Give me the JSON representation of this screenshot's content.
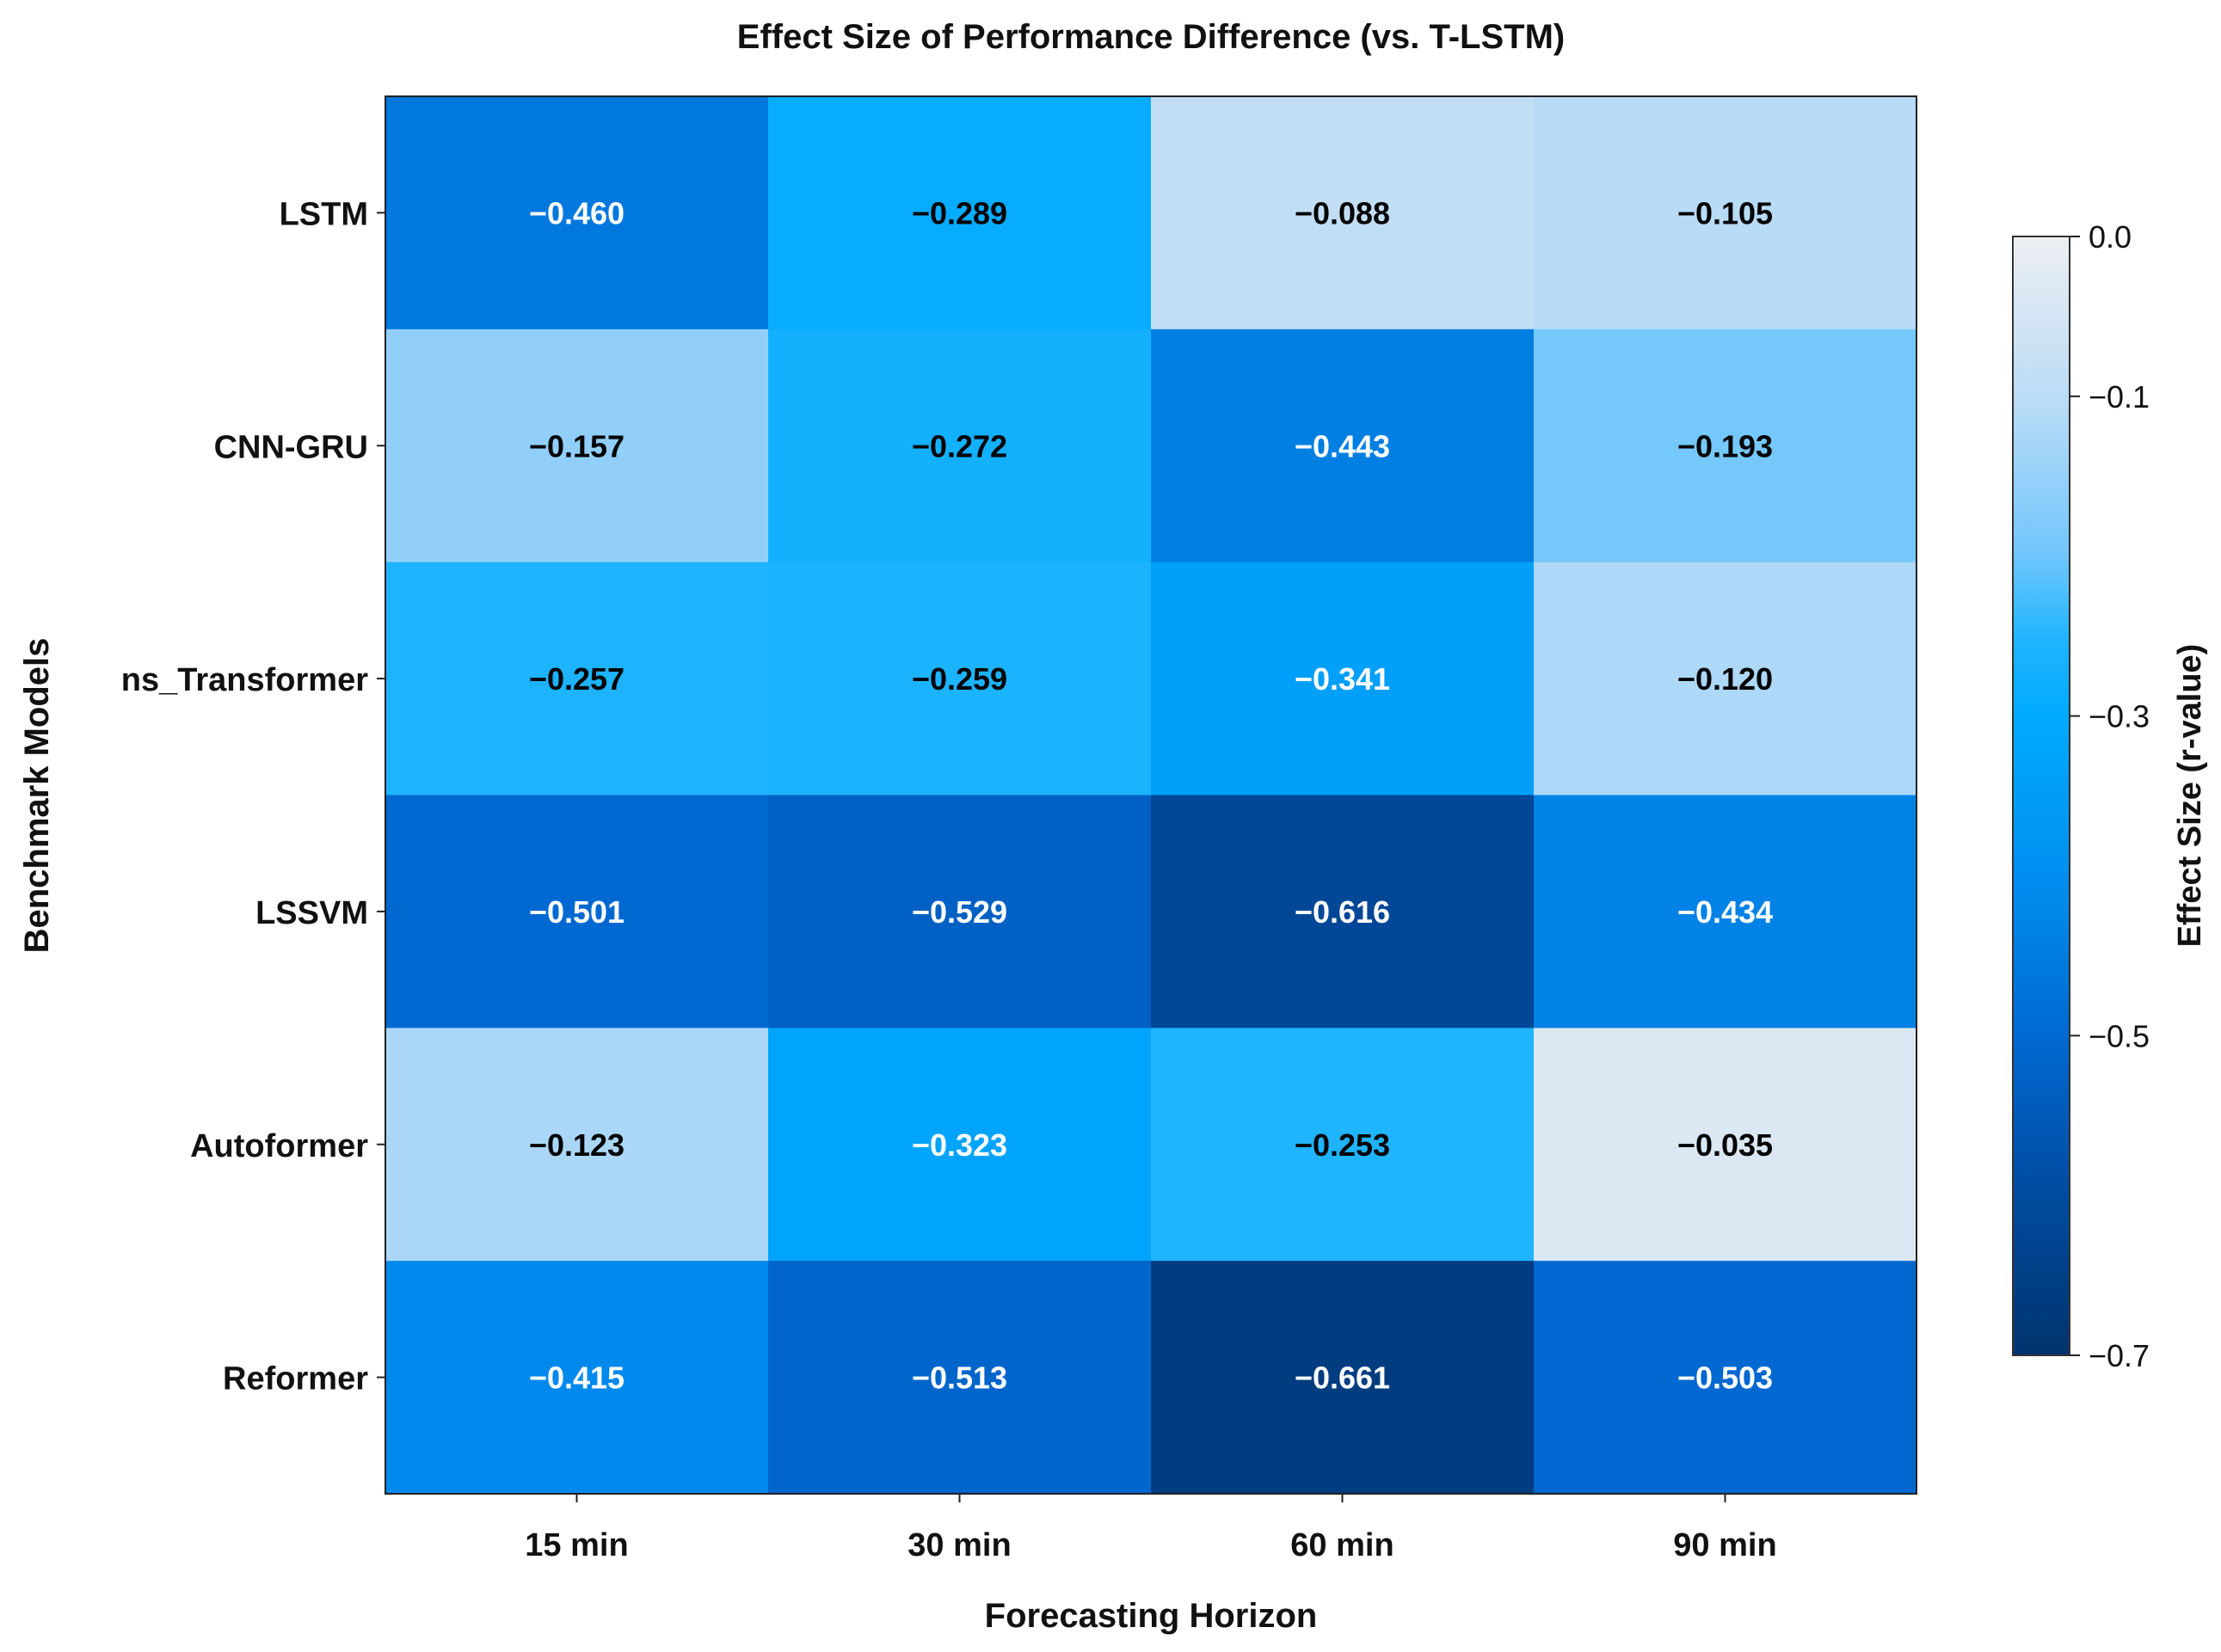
{
  "chart_data": {
    "type": "heatmap",
    "title": "Effect Size of Performance Difference (vs. T-LSTM)",
    "xlabel": "Forecasting Horizon",
    "ylabel": "Benchmark Models",
    "x_categories": [
      "15 min",
      "30 min",
      "60 min",
      "90 min"
    ],
    "y_categories": [
      "LSTM",
      "CNN-GRU",
      "ns_Transformer",
      "LSSVM",
      "Autoformer",
      "Reformer"
    ],
    "values": [
      [
        -0.46,
        -0.289,
        -0.088,
        -0.105
      ],
      [
        -0.157,
        -0.272,
        -0.443,
        -0.193
      ],
      [
        -0.257,
        -0.259,
        -0.341,
        -0.12
      ],
      [
        -0.501,
        -0.529,
        -0.616,
        -0.434
      ],
      [
        -0.123,
        -0.323,
        -0.253,
        -0.035
      ],
      [
        -0.415,
        -0.513,
        -0.661,
        -0.503
      ]
    ],
    "value_labels": [
      [
        "−0.460",
        "−0.289",
        "−0.088",
        "−0.105"
      ],
      [
        "−0.157",
        "−0.272",
        "−0.443",
        "−0.193"
      ],
      [
        "−0.257",
        "−0.259",
        "−0.341",
        "−0.120"
      ],
      [
        "−0.501",
        "−0.529",
        "−0.616",
        "−0.434"
      ],
      [
        "−0.123",
        "−0.323",
        "−0.253",
        "−0.035"
      ],
      [
        "−0.415",
        "−0.513",
        "−0.661",
        "−0.503"
      ]
    ],
    "colorbar": {
      "label": "Effect Size (r-value)",
      "range": [
        -0.7,
        0.0
      ],
      "ticks": [
        0.0,
        -0.1,
        -0.3,
        -0.5,
        -0.7
      ],
      "tick_labels": [
        "0.0",
        "−0.1",
        "−0.3",
        "−0.5",
        "−0.7"
      ]
    },
    "colormap": [
      {
        "value": 0.0,
        "color": "#eceff1"
      },
      {
        "value": -0.1,
        "color": "#bcdcf6"
      },
      {
        "value": -0.2,
        "color": "#70c6fc"
      },
      {
        "value": -0.25,
        "color": "#22b5fe"
      },
      {
        "value": -0.3,
        "color": "#00aaff"
      },
      {
        "value": -0.4,
        "color": "#008ff0"
      },
      {
        "value": -0.5,
        "color": "#0069d2"
      },
      {
        "value": -0.6,
        "color": "#004b9f"
      },
      {
        "value": -0.7,
        "color": "#00336d"
      }
    ],
    "grid": false
  }
}
